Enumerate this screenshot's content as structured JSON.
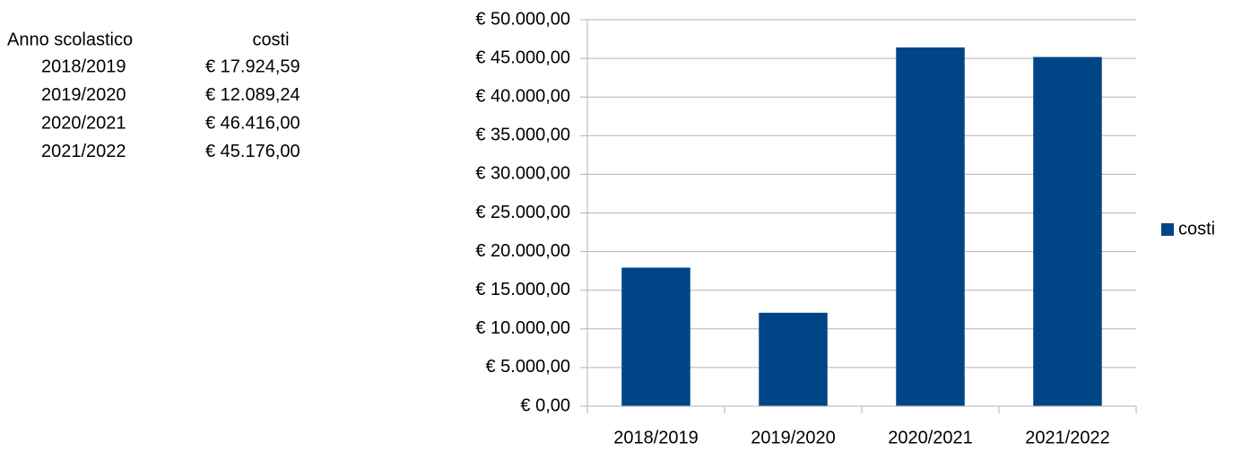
{
  "table": {
    "header": [
      "Anno scolastico",
      "costi"
    ],
    "rows": [
      [
        "2018/2019",
        "€ 17.924,59"
      ],
      [
        "2019/2020",
        "€ 12.089,24"
      ],
      [
        "2020/2021",
        "€ 46.416,00"
      ],
      [
        "2021/2022",
        "€ 45.176,00"
      ]
    ]
  },
  "chart_data": {
    "type": "bar",
    "categories": [
      "2018/2019",
      "2019/2020",
      "2020/2021",
      "2021/2022"
    ],
    "series": [
      {
        "name": "costi",
        "color": "#004586",
        "values": [
          17924.59,
          12089.24,
          46416,
          45176
        ]
      }
    ],
    "ylim": [
      0,
      50000
    ],
    "yticks": [
      {
        "value": 0,
        "label": "€ 0,00"
      },
      {
        "value": 5000,
        "label": "€ 5.000,00"
      },
      {
        "value": 10000,
        "label": "€ 10.000,00"
      },
      {
        "value": 15000,
        "label": "€ 15.000,00"
      },
      {
        "value": 20000,
        "label": "€ 20.000,00"
      },
      {
        "value": 25000,
        "label": "€ 25.000,00"
      },
      {
        "value": 30000,
        "label": "€ 30.000,00"
      },
      {
        "value": 35000,
        "label": "€ 35.000,00"
      },
      {
        "value": 40000,
        "label": "€ 40.000,00"
      },
      {
        "value": 45000,
        "label": "€ 45.000,00"
      },
      {
        "value": 50000,
        "label": "€ 50.000,00"
      }
    ],
    "grid": true,
    "legend": "right"
  }
}
